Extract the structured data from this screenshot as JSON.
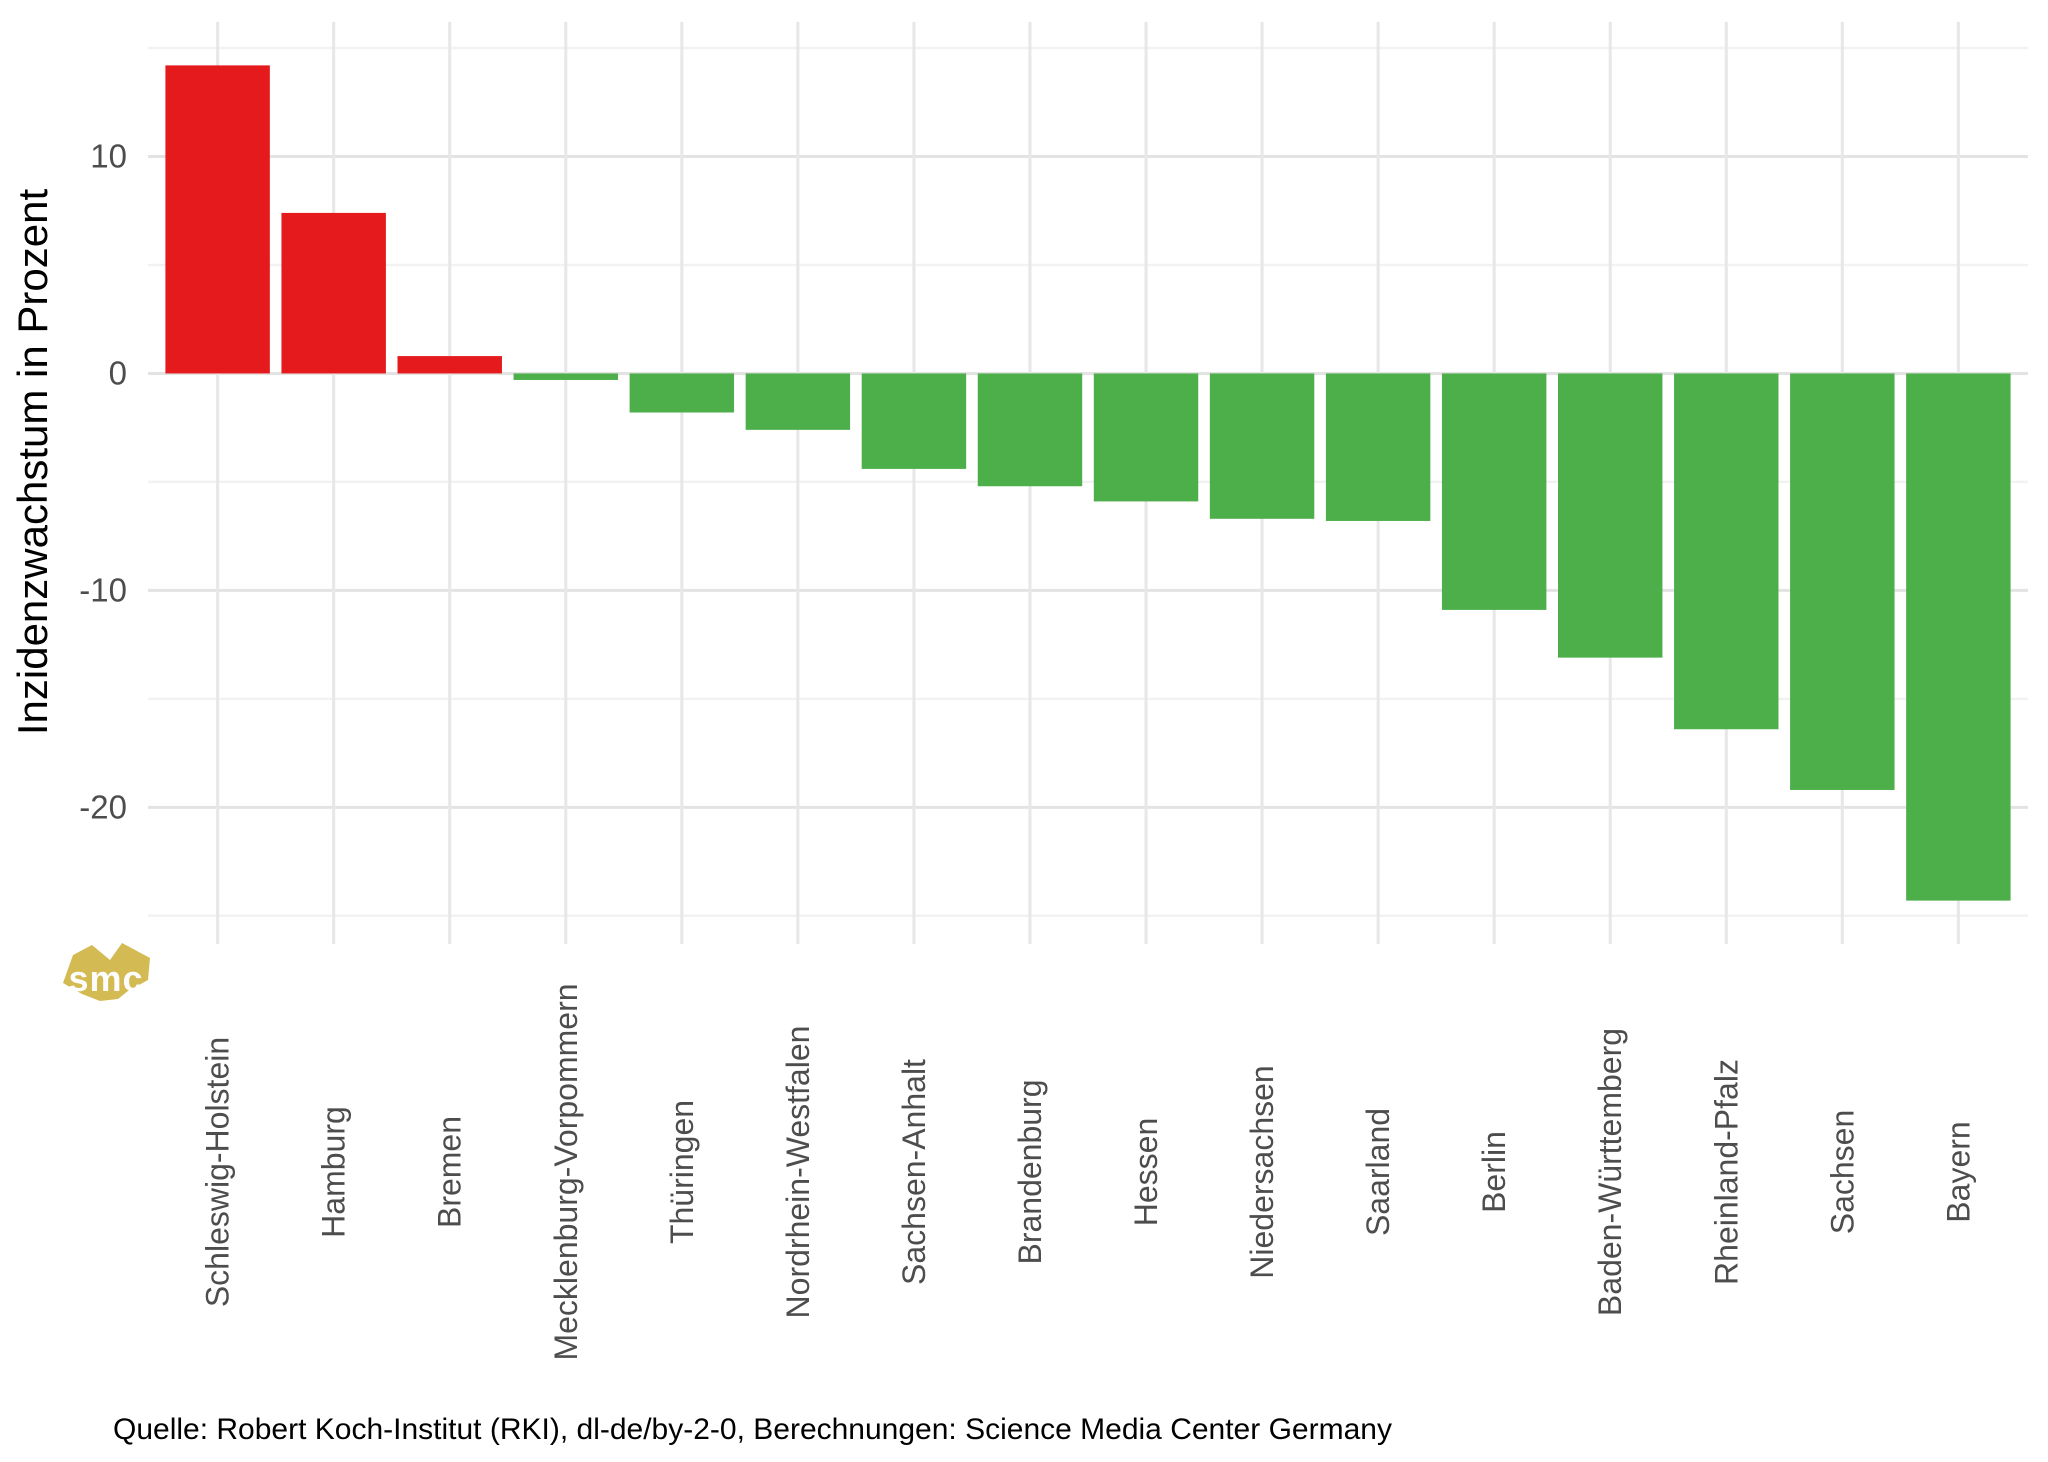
{
  "chart_data": {
    "type": "bar",
    "title": "",
    "xlabel": "",
    "ylabel": "Inzidenzwachstum in Prozent",
    "categories": [
      "Schleswig-Holstein",
      "Hamburg",
      "Bremen",
      "Mecklenburg-Vorpommern",
      "Thüringen",
      "Nordrhein-Westfalen",
      "Sachsen-Anhalt",
      "Brandenburg",
      "Hessen",
      "Niedersachsen",
      "Saarland",
      "Berlin",
      "Baden-Württemberg",
      "Rheinland-Pfalz",
      "Sachsen",
      "Bayern"
    ],
    "values": [
      14.2,
      7.4,
      0.8,
      -0.3,
      -1.8,
      -2.6,
      -4.4,
      -5.2,
      -5.9,
      -6.7,
      -6.8,
      -10.9,
      -13.1,
      -16.4,
      -19.2,
      -24.3
    ],
    "ylim": [
      -26.3,
      16.2
    ],
    "yticks_major": [
      10,
      0,
      -10,
      -20
    ],
    "yticks_minor": [
      15,
      5,
      -5,
      -15,
      -25
    ],
    "grid": "on",
    "legend": "none",
    "colors": {
      "positive_bar": "#e41a1c",
      "negative_bar": "#4daf4a"
    }
  },
  "source_line": "Quelle: Robert Koch-Institut (RKI), dl-de/by-2-0, Berechnungen: Science Media Center Germany",
  "watermark": {
    "text": "smc",
    "fill": "#d4ba52",
    "text_color": "#fdfdfd"
  }
}
